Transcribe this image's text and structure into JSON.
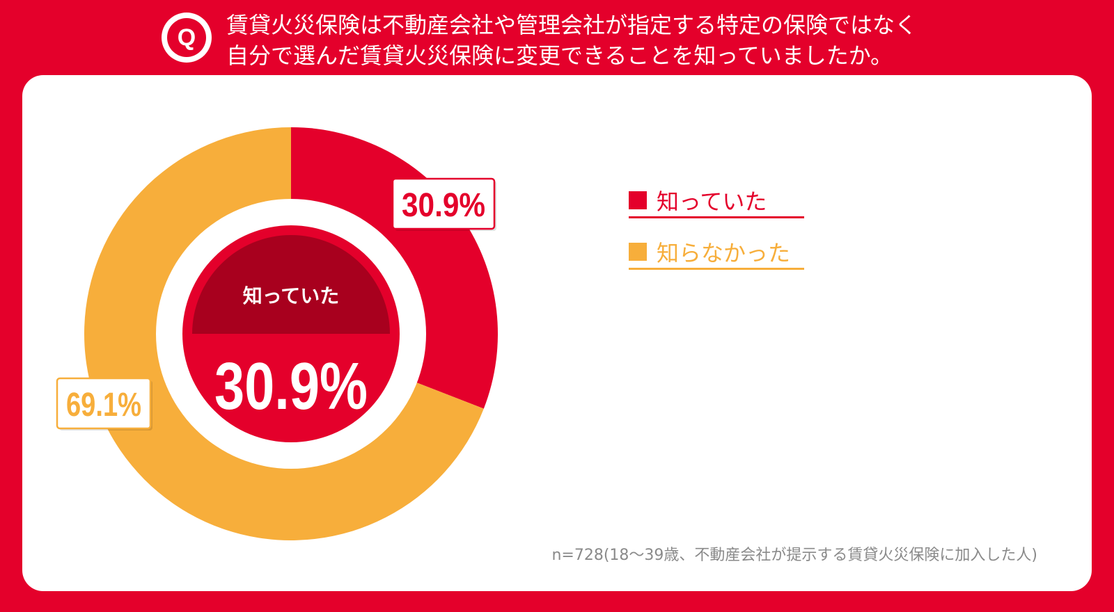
{
  "question": {
    "badge": "Q",
    "line1": "賃貸火災保険は不動産会社や管理会社が指定する特定の保険ではなく",
    "line2": "自分で選んだ賃貸火災保険に変更できることを知っていましたか。"
  },
  "colors": {
    "background_red": "#e4002b",
    "knew": "#e4002b",
    "did_not_know": "#f7ae3b",
    "center_cap": "#a8001e"
  },
  "chart_data": {
    "type": "pie",
    "variant": "donut",
    "title": "",
    "categories": [
      "知っていた",
      "知らなかった"
    ],
    "values": [
      30.9,
      69.1
    ],
    "unit": "%",
    "data_labels": [
      "30.9%",
      "69.1%"
    ],
    "legend": [
      "知っていた",
      "知らなかった"
    ],
    "legend_position": "right",
    "center_label": "知っていた",
    "center_value": "30.9%"
  },
  "footnote": "n=728(18～39歳、不動産会社が提示する賃貸火災保険に加入した人)"
}
